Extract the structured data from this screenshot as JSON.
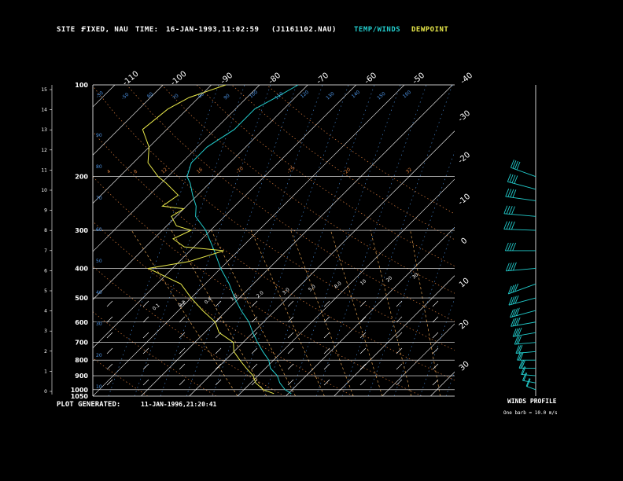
{
  "header": {
    "site_label": "SITE :",
    "site_value": "FIXED, NAU",
    "time_label": "TIME:",
    "time_value": "16-JAN-1993,11:02:59",
    "file_id": "(J1161102.NAU)",
    "legend_temp": "TEMP/WINDS",
    "legend_dew": "DEWPOINT"
  },
  "footer": {
    "generated_label": "PLOT GENERATED:",
    "generated_value": "11-JAN-1996,21:20:41",
    "winds_title": "WINDS PROFILE",
    "winds_note": "One barb = 10.0 m/s"
  },
  "colors": {
    "background": "#000000",
    "temp": "#22cccc",
    "dewpoint": "#e8e84a",
    "isobar": "#ffffff",
    "isotherm": "#ffffff",
    "dry_adiabat": "#d67a3a",
    "moist_adiabat": "#e0a050",
    "mixing_ratio": "#4a90e0",
    "wind": "#22cccc"
  },
  "chart_data": {
    "type": "line",
    "title": "",
    "pressure_ticks": [
      "100",
      "200",
      "300",
      "400",
      "500",
      "600",
      "700",
      "800",
      "900",
      "1000",
      "1050"
    ],
    "km_ticks": [
      "0",
      "1",
      "2",
      "3",
      "4",
      "5",
      "6",
      "7",
      "8",
      "9",
      "10",
      "11",
      "12",
      "13",
      "14",
      "15"
    ],
    "top_temp_ticks": [
      "-110",
      "-100",
      "-90",
      "-80",
      "-70",
      "-60",
      "-50",
      "-40"
    ],
    "right_temp_ticks": [
      "-30",
      "-20",
      "-10",
      "0",
      "10",
      "20",
      "30"
    ],
    "adiabat_labels": [
      "-50",
      "-50",
      "60",
      "70",
      "80",
      "90",
      "100",
      "110",
      "120",
      "130",
      "140",
      "150",
      "160"
    ],
    "mixing_labels": [
      "0.1",
      "0.2",
      "0.4",
      "1.0",
      "2.0",
      "3.0",
      "5.0",
      "8.0",
      "10",
      "20",
      "30"
    ],
    "temp_range_c": [
      -40,
      35
    ],
    "pressure_range_hpa": [
      100,
      1050
    ],
    "log_pressure": true,
    "series": [
      {
        "name": "TEMP/WINDS",
        "points": [
          [
            1030,
            0.6
          ],
          [
            1000,
            -1.5
          ],
          [
            950,
            -4
          ],
          [
            900,
            -6
          ],
          [
            850,
            -9
          ],
          [
            800,
            -11
          ],
          [
            750,
            -14
          ],
          [
            700,
            -17
          ],
          [
            650,
            -20
          ],
          [
            600,
            -23
          ],
          [
            550,
            -27
          ],
          [
            500,
            -31
          ],
          [
            450,
            -35
          ],
          [
            400,
            -40
          ],
          [
            350,
            -45
          ],
          [
            300,
            -51
          ],
          [
            270,
            -56
          ],
          [
            250,
            -58
          ],
          [
            230,
            -61
          ],
          [
            210,
            -64
          ],
          [
            200,
            -66
          ],
          [
            180,
            -68
          ],
          [
            160,
            -68
          ],
          [
            140,
            -66
          ],
          [
            120,
            -66
          ],
          [
            110,
            -64
          ],
          [
            100,
            -62
          ]
        ]
      },
      {
        "name": "DEWPOINT",
        "points": [
          [
            1030,
            -3
          ],
          [
            1000,
            -6
          ],
          [
            950,
            -9
          ],
          [
            900,
            -11
          ],
          [
            850,
            -14
          ],
          [
            800,
            -17
          ],
          [
            750,
            -20
          ],
          [
            700,
            -22
          ],
          [
            650,
            -27
          ],
          [
            600,
            -30
          ],
          [
            550,
            -35
          ],
          [
            500,
            -40
          ],
          [
            450,
            -45
          ],
          [
            400,
            -55
          ],
          [
            380,
            -48
          ],
          [
            350,
            -43
          ],
          [
            340,
            -52
          ],
          [
            320,
            -56
          ],
          [
            300,
            -54
          ],
          [
            290,
            -58
          ],
          [
            270,
            -61
          ],
          [
            255,
            -60
          ],
          [
            250,
            -65
          ],
          [
            230,
            -64
          ],
          [
            210,
            -69
          ],
          [
            200,
            -72
          ],
          [
            180,
            -77
          ],
          [
            160,
            -80
          ],
          [
            140,
            -85
          ],
          [
            120,
            -84
          ],
          [
            110,
            -82
          ],
          [
            100,
            -77
          ]
        ]
      }
    ],
    "winds": [
      {
        "p": 1000,
        "dir": 250,
        "spd": 15
      },
      {
        "p": 950,
        "dir": 260,
        "spd": 20
      },
      {
        "p": 900,
        "dir": 265,
        "spd": 22
      },
      {
        "p": 850,
        "dir": 270,
        "spd": 25
      },
      {
        "p": 800,
        "dir": 270,
        "spd": 28
      },
      {
        "p": 750,
        "dir": 275,
        "spd": 30
      },
      {
        "p": 700,
        "dir": 275,
        "spd": 32
      },
      {
        "p": 650,
        "dir": 280,
        "spd": 35
      },
      {
        "p": 600,
        "dir": 280,
        "spd": 38
      },
      {
        "p": 550,
        "dir": 285,
        "spd": 40
      },
      {
        "p": 500,
        "dir": 285,
        "spd": 42
      },
      {
        "p": 450,
        "dir": 290,
        "spd": 44
      },
      {
        "p": 400,
        "dir": 275,
        "spd": 45
      },
      {
        "p": 350,
        "dir": 270,
        "spd": 46
      },
      {
        "p": 300,
        "dir": 268,
        "spd": 48
      },
      {
        "p": 270,
        "dir": 265,
        "spd": 48
      },
      {
        "p": 240,
        "dir": 262,
        "spd": 46
      },
      {
        "p": 220,
        "dir": 255,
        "spd": 44
      },
      {
        "p": 200,
        "dir": 250,
        "spd": 40
      }
    ]
  }
}
